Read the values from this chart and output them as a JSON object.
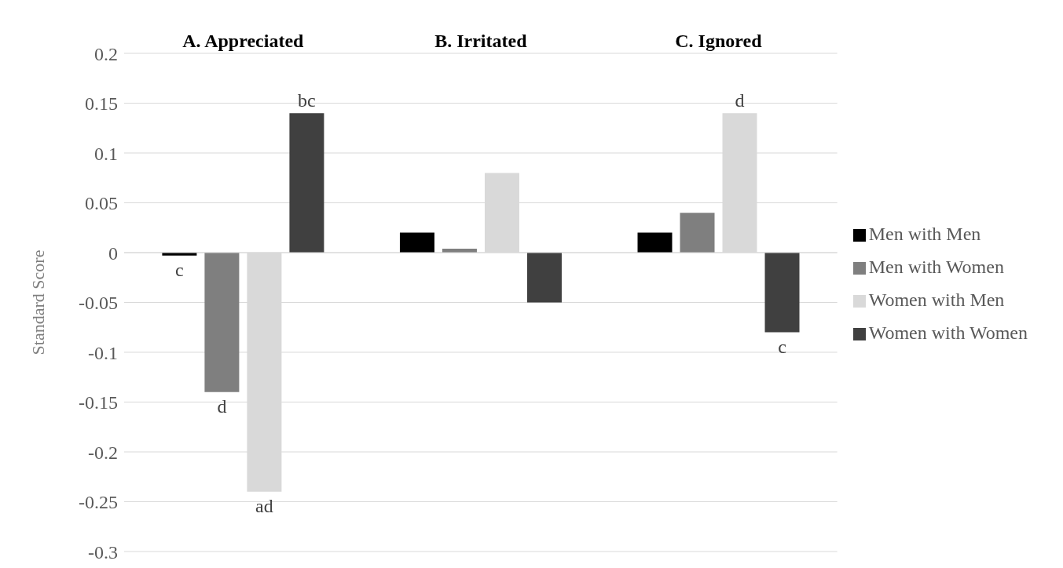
{
  "chart_data": {
    "type": "bar",
    "categories": [
      "A. Appreciated",
      "B. Irritated",
      "C. Ignored"
    ],
    "ylabel": "Standard Score",
    "series": [
      {
        "name": "Men with Men",
        "color": "#000000",
        "values": [
          -0.003,
          0.02,
          0.02
        ],
        "value_labels": [
          "c",
          null,
          null
        ]
      },
      {
        "name": "Men with Women",
        "color": "#7f7f7f",
        "values": [
          -0.14,
          0.004,
          0.04
        ],
        "value_labels": [
          "d",
          null,
          null
        ]
      },
      {
        "name": "Women with Men",
        "color": "#d9d9d9",
        "values": [
          -0.24,
          0.08,
          0.14
        ],
        "value_labels": [
          "ad",
          null,
          "d"
        ]
      },
      {
        "name": "Women with Women",
        "color": "#404040",
        "values": [
          0.14,
          -0.05,
          -0.08
        ],
        "value_labels": [
          "bc",
          null,
          "c"
        ]
      }
    ],
    "ylim": [
      -0.3,
      0.2
    ],
    "yticks": [
      -0.3,
      -0.25,
      -0.2,
      -0.15,
      -0.1,
      -0.05,
      0,
      0.05,
      0.1,
      0.15,
      0.2
    ],
    "grid": "y",
    "legend": "right"
  }
}
